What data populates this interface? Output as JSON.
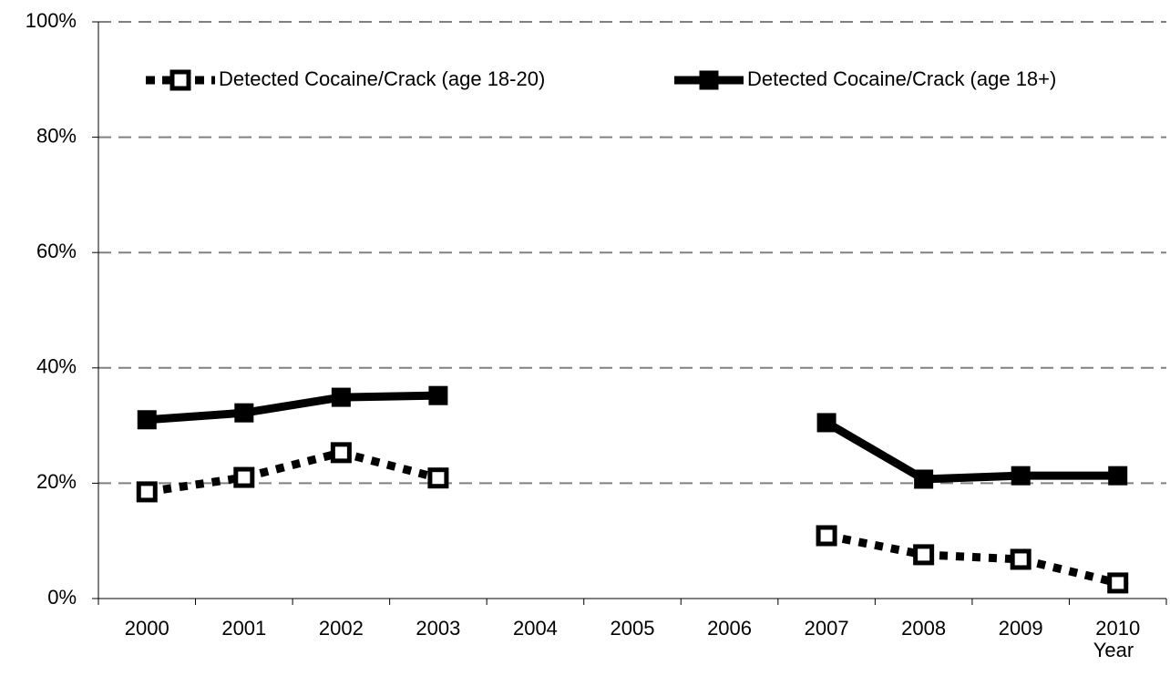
{
  "chart_data": {
    "type": "line",
    "x_label": "Year",
    "categories": [
      "2000",
      "2001",
      "2002",
      "2003",
      "2004",
      "2005",
      "2006",
      "2007",
      "2008",
      "2009",
      "2010"
    ],
    "series": [
      {
        "name": "Detected Cocaine/Crack (age 18-20)",
        "color": "#000000",
        "line_style": "dotted",
        "marker_fill": "#ffffff",
        "values": [
          18.5,
          21.0,
          25.3,
          20.9,
          null,
          null,
          null,
          10.9,
          7.6,
          6.8,
          2.7
        ]
      },
      {
        "name": "Detected Cocaine/Crack  (age 18+)",
        "color": "#000000",
        "line_style": "solid",
        "marker_fill": "#000000",
        "values": [
          31.0,
          32.2,
          34.9,
          35.2,
          null,
          null,
          null,
          30.5,
          20.7,
          21.3,
          21.3
        ]
      }
    ],
    "ylim": [
      0,
      100
    ],
    "yticks": [
      {
        "value": 0,
        "label": "0%"
      },
      {
        "value": 20,
        "label": "20%"
      },
      {
        "value": 40,
        "label": "40%"
      },
      {
        "value": 60,
        "label": "60%"
      },
      {
        "value": 80,
        "label": "80%"
      },
      {
        "value": 100,
        "label": "100%"
      }
    ],
    "grid": true,
    "grid_color": "#808080",
    "legend": "top"
  }
}
